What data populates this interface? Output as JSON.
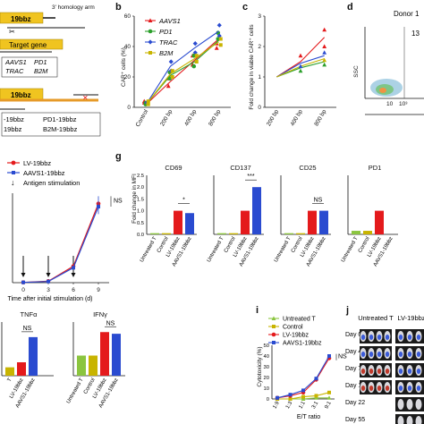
{
  "schematic": {
    "homology_arm": "3' homology arm",
    "box_19bbz": "19bbz",
    "box_target": "Target gene",
    "genes": [
      "AAVS1",
      "PD1",
      "TRAC",
      "B2M"
    ],
    "box_19bbz_2": "19bbz",
    "construct_labels": [
      "-19bbz",
      "PD1-19bbz",
      "19bbz",
      "B2M-19bbz"
    ]
  },
  "panel_labels": {
    "b": "b",
    "c": "c",
    "d": "d",
    "g": "g",
    "i": "i",
    "j": "j"
  },
  "colors": {
    "AAVS1": "#e41a1c",
    "PD1": "#2ca02c",
    "TRAC": "#2a4bd0",
    "B2M": "#c8b400",
    "lv": "#e41a1c",
    "aavs1": "#2a4bd0",
    "untreated": "#8bc53f",
    "control": "#c8b400",
    "cyto_lv": "#e41a1c",
    "cyto_aavs1": "#2a4bd0"
  },
  "chart_b": {
    "type": "line",
    "ylabel": "CAR⁺ cells (%)",
    "categories": [
      "Control",
      "200 bp",
      "400 bp",
      "800 bp"
    ],
    "ylim": [
      0,
      60
    ],
    "series": [
      {
        "name": "AAVS1",
        "values": [
          2,
          17,
          31,
          45
        ],
        "points": [
          [
            3,
            4
          ],
          [
            14,
            19
          ],
          [
            28,
            34
          ],
          [
            39,
            42
          ]
        ]
      },
      {
        "name": "PD1",
        "values": [
          2,
          21,
          30,
          44
        ],
        "points": [
          [
            2,
            3
          ],
          [
            19,
            23
          ],
          [
            27,
            34
          ],
          [
            45,
            49
          ]
        ]
      },
      {
        "name": "TRAC",
        "values": [
          2,
          27,
          39,
          50
        ],
        "points": [
          [
            3,
            3
          ],
          [
            24,
            30
          ],
          [
            36,
            42
          ],
          [
            47,
            54
          ]
        ]
      },
      {
        "name": "B2M",
        "values": [
          2,
          22,
          32,
          43
        ],
        "points": [
          [
            2,
            4
          ],
          [
            20,
            24
          ],
          [
            30,
            34
          ],
          [
            41,
            45
          ]
        ]
      }
    ]
  },
  "chart_c": {
    "type": "line",
    "ylabel": "Fold change in viable CAR⁺ cells",
    "categories": [
      "200 bp",
      "400 bp",
      "800 bp"
    ],
    "ylim": [
      0,
      3
    ],
    "series": [
      {
        "name": "AAVS1",
        "values": [
          1,
          1.5,
          2.3
        ]
      },
      {
        "name": "PD1",
        "values": [
          1,
          1.3,
          1.5
        ]
      },
      {
        "name": "TRAC",
        "values": [
          1,
          1.45,
          1.7
        ]
      },
      {
        "name": "B2M",
        "values": [
          1,
          1.35,
          1.6
        ]
      }
    ],
    "points": [
      {
        "s": "AAVS1",
        "x": 2,
        "y": 2.55
      },
      {
        "s": "AAVS1",
        "x": 2,
        "y": 2.0
      },
      {
        "s": "AAVS1",
        "x": 1,
        "y": 1.7
      },
      {
        "s": "PD1",
        "x": 2,
        "y": 1.4
      },
      {
        "s": "TRAC",
        "x": 2,
        "y": 1.8
      },
      {
        "s": "B2M",
        "x": 2,
        "y": 1.55
      },
      {
        "s": "PD1",
        "x": 1,
        "y": 1.2
      },
      {
        "s": "TRAC",
        "x": 1,
        "y": 1.35
      }
    ]
  },
  "panel_d": {
    "title": "Donor 1",
    "value": "13",
    "ylabel": "SSC",
    "tick": "10³",
    "tick2": "10"
  },
  "chart_e": {
    "type": "line",
    "legend": [
      "LV-19bbz",
      "AAVS1-19bbz",
      "Antigen stimulation"
    ],
    "xlabel": "Time after initial stimulation (d)",
    "categories": [
      "0",
      "3",
      "6",
      "9"
    ],
    "ylim": [
      0,
      300
    ],
    "series": [
      {
        "name": "LV-19bbz",
        "values": [
          1,
          5,
          55,
          265
        ]
      },
      {
        "name": "AAVS1-19bbz",
        "values": [
          1,
          4,
          50,
          255
        ]
      }
    ],
    "annotation": "NS"
  },
  "chart_g": {
    "type": "bar",
    "ylabel": "Fold change in MFI",
    "categories": [
      "Untreated T",
      "Control",
      "LV-19bbz",
      "AAVS1-19bbz"
    ],
    "ylim": [
      0,
      2.5
    ],
    "panels": [
      {
        "title": "CD69",
        "values": [
          0.05,
          0.05,
          1.0,
          0.9
        ],
        "sig": "*"
      },
      {
        "title": "CD137",
        "values": [
          0.05,
          0.05,
          1.0,
          2.0
        ],
        "sig": "***"
      },
      {
        "title": "CD25",
        "values": [
          0.05,
          0.05,
          1.0,
          1.0
        ],
        "sig": "NS"
      },
      {
        "title": "PD1",
        "values": [
          0.15,
          0.15,
          1.0,
          0.0
        ],
        "sig": ""
      }
    ]
  },
  "chart_h": {
    "type": "bar",
    "panels": [
      {
        "title": "TNFα",
        "values": [
          0.25,
          0.4,
          1.15
        ],
        "categories": [
          "T",
          "LV-19bbz",
          "AAVS1-19bbz"
        ],
        "sig": "NS"
      },
      {
        "title": "IFNγ",
        "values": [
          0.6,
          0.6,
          1.3,
          1.25
        ],
        "categories": [
          "Untreated T",
          "Control",
          "LV-19bbz",
          "AAVS1-19bbz"
        ],
        "sig": "NS"
      }
    ]
  },
  "chart_i": {
    "type": "line",
    "ylabel": "Cytotoxicity (%)",
    "xlabel": "E/T ratio",
    "categories": [
      "1:9",
      "1:3",
      "1:1",
      "3:1",
      "9:1"
    ],
    "ylim": [
      0,
      50
    ],
    "series": [
      {
        "name": "Untreated T",
        "values": [
          0,
          0,
          0,
          1,
          1
        ]
      },
      {
        "name": "Control",
        "values": [
          0,
          0,
          2,
          3,
          6
        ]
      },
      {
        "name": "LV-19bbz",
        "values": [
          1,
          3,
          6,
          18,
          38
        ]
      },
      {
        "name": "AAVS1-19bbz",
        "values": [
          1,
          4,
          8,
          19,
          40
        ]
      }
    ],
    "annotation": "NS"
  },
  "panel_j": {
    "col1": "Untreated T",
    "col2": "LV-19bbz",
    "days": [
      "Day 0",
      "Day 4",
      "Day 7",
      "Day 10",
      "Day 22",
      "Day 55"
    ]
  }
}
